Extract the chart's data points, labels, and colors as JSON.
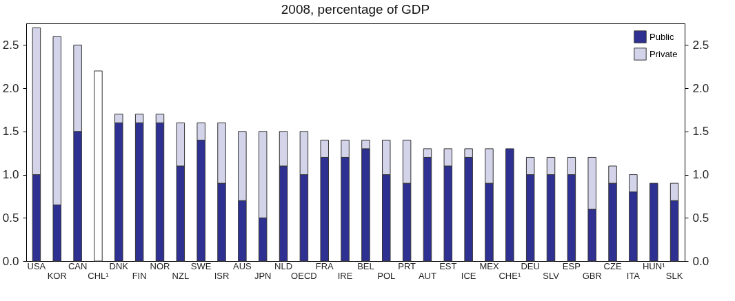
{
  "chart_data": {
    "type": "bar",
    "title": "2008, percentage of GDP",
    "stacked": true,
    "categories": [
      "USA",
      "KOR",
      "CAN",
      "CHL¹",
      "DNK",
      "FIN",
      "NOR",
      "NZL",
      "SWE",
      "ISR",
      "AUS",
      "JPN",
      "NLD",
      "OECD",
      "FRA",
      "IRE",
      "BEL",
      "POL",
      "PRT",
      "AUT",
      "EST",
      "ICE",
      "MEX",
      "CHE¹",
      "DEU",
      "SLV",
      "ESP",
      "GBR",
      "CZE",
      "ITA",
      "HUN¹",
      "SLK"
    ],
    "series": [
      {
        "name": "Public",
        "color": "#2e3192",
        "values": [
          1.0,
          0.65,
          1.5,
          null,
          1.6,
          1.6,
          1.6,
          1.1,
          1.4,
          0.9,
          0.7,
          0.5,
          1.1,
          1.0,
          1.2,
          1.2,
          1.3,
          1.0,
          0.9,
          1.2,
          1.1,
          1.2,
          0.9,
          1.3,
          1.0,
          1.0,
          1.0,
          0.6,
          0.9,
          0.8,
          0.9,
          0.7
        ]
      },
      {
        "name": "Private",
        "color": "#d3d3ea",
        "values": [
          1.7,
          1.95,
          1.0,
          null,
          0.1,
          0.1,
          0.1,
          0.5,
          0.2,
          0.7,
          0.8,
          1.0,
          0.4,
          0.5,
          0.2,
          0.2,
          0.1,
          0.4,
          0.5,
          0.1,
          0.2,
          0.1,
          0.4,
          null,
          0.2,
          0.2,
          0.2,
          0.6,
          0.2,
          0.2,
          null,
          0.2
        ]
      },
      {
        "color": "#ffffff",
        "values": [
          null,
          null,
          null,
          2.2,
          null,
          null,
          null,
          null,
          null,
          null,
          null,
          null,
          null,
          null,
          null,
          null,
          null,
          null,
          null,
          null,
          null,
          null,
          null,
          null,
          null,
          null,
          null,
          null,
          null,
          null,
          null,
          null
        ]
      }
    ],
    "ylim": [
      0,
      2.75
    ],
    "yticks": [
      {
        "value": 0,
        "label": "0.0"
      },
      {
        "value": 0.5,
        "label": "0.5"
      },
      {
        "value": 1,
        "label": "1.0"
      },
      {
        "value": 1.5,
        "label": "1.5"
      },
      {
        "value": 2,
        "label": "2.0"
      },
      {
        "value": 2.5,
        "label": "2.5"
      }
    ],
    "y2lim": [
      0,
      2.75
    ],
    "y2ticks": [
      {
        "value": 0,
        "label": "0.0"
      },
      {
        "value": 0.5,
        "label": "0.5"
      },
      {
        "value": 1,
        "label": "1.0"
      },
      {
        "value": 1.5,
        "label": "1.5"
      },
      {
        "value": 2,
        "label": "2.0"
      },
      {
        "value": 2.5,
        "label": "2.5"
      }
    ],
    "legend": "top right",
    "grid": false
  }
}
